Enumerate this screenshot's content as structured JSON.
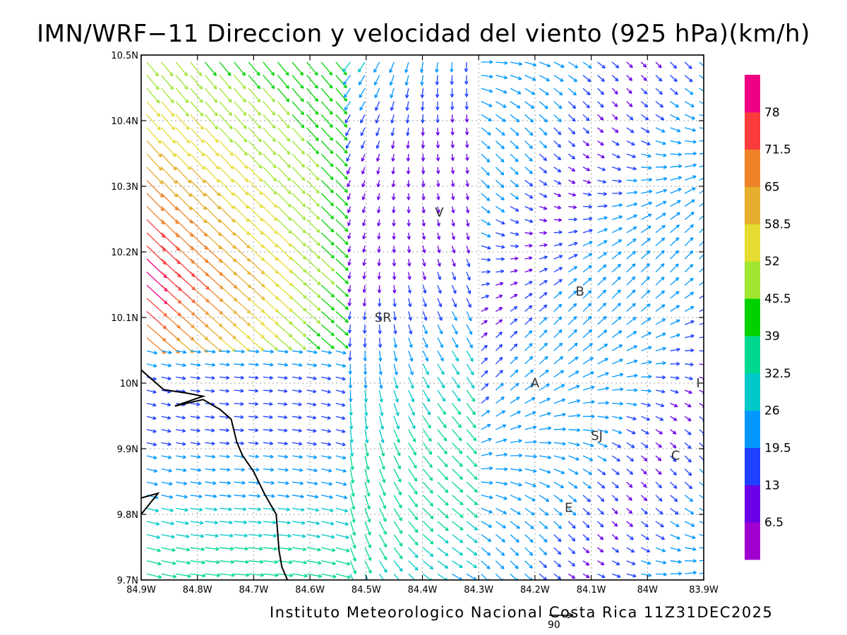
{
  "title": "IMN/WRF−11 Direccion y velocidad del viento (925 hPa)(km/h)",
  "footer": "Instituto Meteorologico Nacional Costa Rica 11Z31DEC2025",
  "reference_vector": {
    "label": "90",
    "value_kmh": 90
  },
  "map": {
    "lon_range": [
      -84.9,
      -83.9
    ],
    "lat_range": [
      9.7,
      10.5
    ],
    "grid": "dotted",
    "x_ticks": [
      "84.9W",
      "84.8W",
      "84.7W",
      "84.6W",
      "84.5W",
      "84.4W",
      "84.3W",
      "84.2W",
      "84.1W",
      "84W",
      "83.9W"
    ],
    "y_ticks": [
      "9.7N",
      "9.8N",
      "9.9N",
      "10N",
      "10.1N",
      "10.2N",
      "10.3N",
      "10.4N",
      "10.5N"
    ],
    "places": [
      {
        "name": "V",
        "lon": -84.37,
        "lat": 10.26
      },
      {
        "name": "B",
        "lon": -84.12,
        "lat": 10.14
      },
      {
        "name": "SR",
        "lon": -84.47,
        "lat": 10.1
      },
      {
        "name": "A",
        "lon": -84.2,
        "lat": 10.0
      },
      {
        "name": "I",
        "lon": -83.91,
        "lat": 10.0
      },
      {
        "name": "SJ",
        "lon": -84.09,
        "lat": 9.92
      },
      {
        "name": "C",
        "lon": -83.95,
        "lat": 9.89
      },
      {
        "name": "E",
        "lon": -84.14,
        "lat": 9.81
      }
    ]
  },
  "legend": {
    "labels": [
      "6.5",
      "13",
      "19.5",
      "26",
      "32.5",
      "39",
      "45.5",
      "52",
      "58.5",
      "65",
      "71.5",
      "78"
    ],
    "colors": [
      "#a000d0",
      "#6a00e8",
      "#2040ff",
      "#0098ff",
      "#00c8c8",
      "#00d890",
      "#00d200",
      "#a0e632",
      "#e6dc32",
      "#e6af2d",
      "#f08228",
      "#fa3c3c",
      "#f00082"
    ]
  },
  "colors": {
    "coastline": "#000000",
    "frame": "#000000",
    "grid": "#a0a0a0"
  }
}
